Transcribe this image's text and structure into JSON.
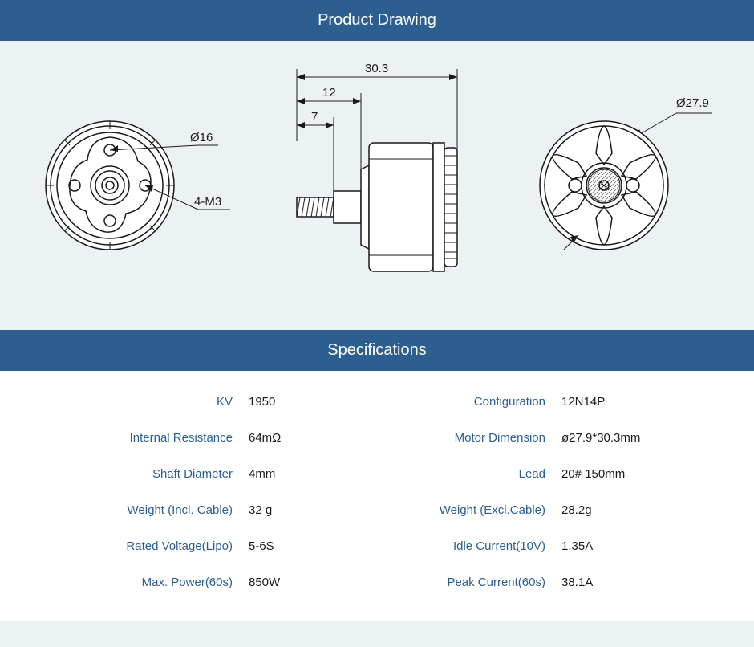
{
  "colors": {
    "header_bg": "#2c5f8f",
    "header_text": "#ffffff",
    "drawing_bg": "#ecf1f4",
    "specs_bg": "#ffffff",
    "label_color": "#2c5f8f",
    "value_color": "#1a1a1a",
    "line_color": "#1a1a1a"
  },
  "headers": {
    "drawing": "Product Drawing",
    "specs": "Specifications"
  },
  "dimensions": {
    "outer_diameter": "Ø27.9",
    "bolt_circle": "Ø16",
    "mounting": "4-M3",
    "length1": "30.3",
    "length2": "12",
    "length3": "7"
  },
  "specs": [
    {
      "label": "KV",
      "value": "1950"
    },
    {
      "label": "Configuration",
      "value": "12N14P"
    },
    {
      "label": "Internal Resistance",
      "value": "64mΩ"
    },
    {
      "label": "Motor Dimension",
      "value": "ø27.9*30.3mm"
    },
    {
      "label": "Shaft Diameter",
      "value": "4mm"
    },
    {
      "label": "Lead",
      "value": "20# 150mm"
    },
    {
      "label": "Weight (Incl. Cable)",
      "value": "32 g"
    },
    {
      "label": "Weight (Excl.Cable)",
      "value": "28.2g"
    },
    {
      "label": "Rated Voltage(Lipo)",
      "value": "5-6S"
    },
    {
      "label": "Idle Current(10V)",
      "value": "1.35A"
    },
    {
      "label": "Max. Power(60s)",
      "value": "850W"
    },
    {
      "label": "Peak Current(60s)",
      "value": "38.1A"
    }
  ],
  "drawing_style": {
    "outline_stroke_width": 1.5,
    "dim_stroke_width": 1,
    "label_fontsize": 15
  }
}
